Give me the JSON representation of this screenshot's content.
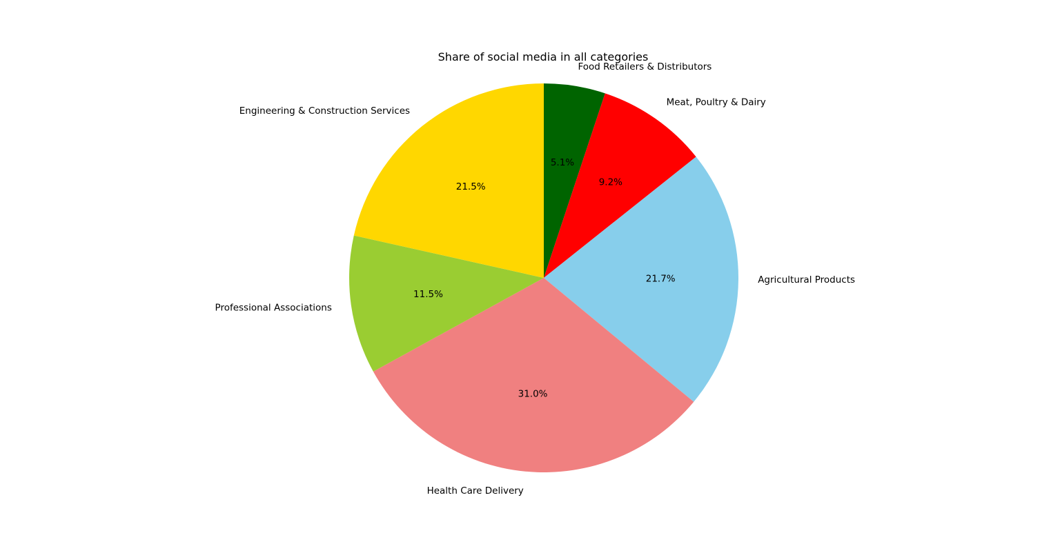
{
  "chart_data": {
    "type": "pie",
    "title": "Share of social media in all categories",
    "start_angle_deg": 90,
    "direction": "clockwise",
    "slices": [
      {
        "label": "Food Retailers & Distributors",
        "value": 5.1,
        "pct_label": "5.1%",
        "color": "#006400"
      },
      {
        "label": "Meat, Poultry & Dairy",
        "value": 9.2,
        "pct_label": "9.2%",
        "color": "#ff0000"
      },
      {
        "label": "Agricultural Products",
        "value": 21.7,
        "pct_label": "21.7%",
        "color": "#87ceeb"
      },
      {
        "label": "Health Care Delivery",
        "value": 31.0,
        "pct_label": "31.0%",
        "color": "#f08080"
      },
      {
        "label": "Professional Associations",
        "value": 11.5,
        "pct_label": "11.5%",
        "color": "#9acd32"
      },
      {
        "label": "Engineering & Construction Services",
        "value": 21.5,
        "pct_label": "21.5%",
        "color": "#ffd700"
      }
    ]
  }
}
